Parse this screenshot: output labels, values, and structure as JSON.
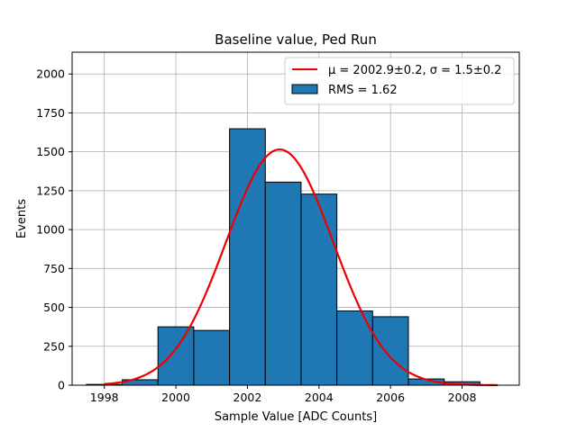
{
  "chart_data": {
    "type": "bar",
    "title": "Baseline value, Ped Run",
    "xlabel": "Sample Value [ADC Counts]",
    "ylabel": "Events",
    "xlim": [
      1997.1,
      2009.6
    ],
    "ylim": [
      0,
      2140
    ],
    "grid": true,
    "legend_position": "top-right",
    "xticks": [
      1998,
      2000,
      2002,
      2004,
      2006,
      2008
    ],
    "yticks": [
      0,
      250,
      500,
      750,
      1000,
      1250,
      1500,
      1750,
      2000
    ],
    "histogram": {
      "name": "RMS = 1.62",
      "color": "#1f77b4",
      "edge_color": "#000000",
      "bins": [
        {
          "left": 1997.5,
          "right": 1998.5,
          "value": 5
        },
        {
          "left": 1998.5,
          "right": 1999.5,
          "value": 35
        },
        {
          "left": 1999.5,
          "right": 2000.5,
          "value": 375
        },
        {
          "left": 2000.5,
          "right": 2001.5,
          "value": 352
        },
        {
          "left": 2001.5,
          "right": 2002.5,
          "value": 1648
        },
        {
          "left": 2002.5,
          "right": 2003.5,
          "value": 1305
        },
        {
          "left": 2003.5,
          "right": 2004.5,
          "value": 1228
        },
        {
          "left": 2004.5,
          "right": 2005.5,
          "value": 477
        },
        {
          "left": 2005.5,
          "right": 2006.5,
          "value": 440
        },
        {
          "left": 2006.5,
          "right": 2007.5,
          "value": 40
        },
        {
          "left": 2007.5,
          "right": 2008.5,
          "value": 22
        }
      ]
    },
    "fit": {
      "name": "μ = 2002.9±0.2, σ = 1.5±0.2",
      "color": "#ee0000",
      "type": "gaussian",
      "mu": 2002.9,
      "sigma": 1.5,
      "amplitude": 1515,
      "x_range": [
        1998.0,
        2009.0
      ]
    },
    "legend": {
      "fit_label": "μ = 2002.9±0.2, σ = 1.5±0.2",
      "hist_label": "RMS = 1.62"
    }
  }
}
